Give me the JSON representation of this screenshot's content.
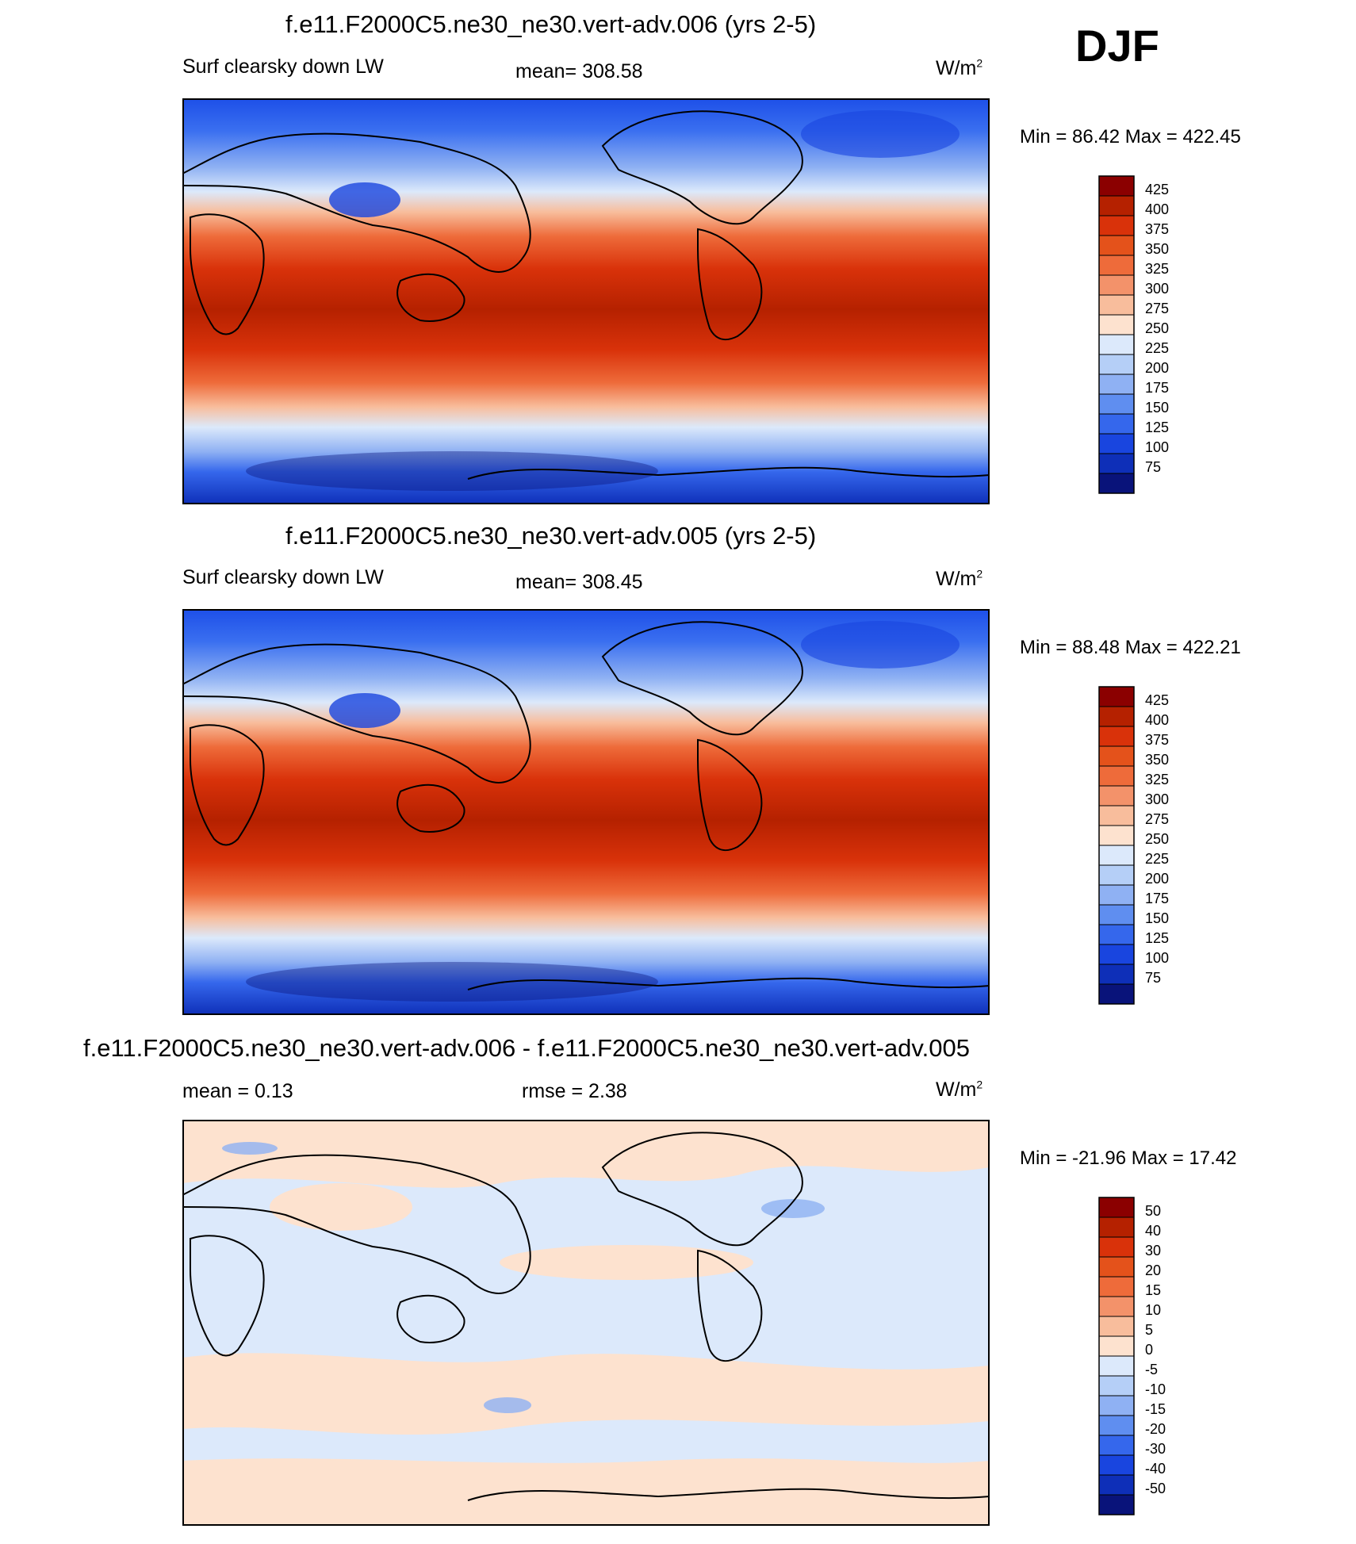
{
  "season": "DJF",
  "panels": [
    {
      "id": "p1",
      "title": "f.e11.F2000C5.ne30_ne30.vert-adv.006 (yrs 2-5)",
      "left_label": "Surf clearsky down LW",
      "center_label": "mean= 308.58",
      "units_base": "W/m",
      "units_sup": "2",
      "minmax": "Min =  86.42 Max = 422.45",
      "colorbar": {
        "ticks": [
          "425",
          "400",
          "375",
          "350",
          "325",
          "300",
          "275",
          "250",
          "225",
          "200",
          "175",
          "150",
          "125",
          "100",
          "75"
        ],
        "colors": [
          "#8b0000",
          "#b52100",
          "#d9320a",
          "#e4521b",
          "#ee6b3a",
          "#f3926a",
          "#f8bd9c",
          "#fde2cf",
          "#dce9fb",
          "#b5cff7",
          "#8fb1f3",
          "#5f8ef0",
          "#3567ec",
          "#1945df",
          "#0e2fb8",
          "#09137a"
        ]
      }
    },
    {
      "id": "p2",
      "title": "f.e11.F2000C5.ne30_ne30.vert-adv.005 (yrs 2-5)",
      "left_label": "Surf clearsky down LW",
      "center_label": "mean= 308.45",
      "units_base": "W/m",
      "units_sup": "2",
      "minmax": "Min =  88.48 Max = 422.21",
      "colorbar": {
        "ticks": [
          "425",
          "400",
          "375",
          "350",
          "325",
          "300",
          "275",
          "250",
          "225",
          "200",
          "175",
          "150",
          "125",
          "100",
          "75"
        ],
        "colors": [
          "#8b0000",
          "#b52100",
          "#d9320a",
          "#e4521b",
          "#ee6b3a",
          "#f3926a",
          "#f8bd9c",
          "#fde2cf",
          "#dce9fb",
          "#b5cff7",
          "#8fb1f3",
          "#5f8ef0",
          "#3567ec",
          "#1945df",
          "#0e2fb8",
          "#09137a"
        ]
      }
    },
    {
      "id": "p3",
      "title": "f.e11.F2000C5.ne30_ne30.vert-adv.006 - f.e11.F2000C5.ne30_ne30.vert-adv.005",
      "left_label": "mean =   0.13",
      "center_label": "rmse =   2.38",
      "units_base": "W/m",
      "units_sup": "2",
      "minmax": "Min = -21.96 Max =  17.42",
      "colorbar": {
        "ticks": [
          "50",
          "40",
          "30",
          "20",
          "15",
          "10",
          "5",
          "0",
          "-5",
          "-10",
          "-15",
          "-20",
          "-30",
          "-40",
          "-50"
        ],
        "colors": [
          "#8b0000",
          "#b52100",
          "#d9320a",
          "#e4521b",
          "#ee6b3a",
          "#f3926a",
          "#f8bd9c",
          "#fde2cf",
          "#dce9fb",
          "#b5cff7",
          "#8fb1f3",
          "#5f8ef0",
          "#3567ec",
          "#1945df",
          "#0e2fb8",
          "#09137a"
        ]
      }
    }
  ]
}
